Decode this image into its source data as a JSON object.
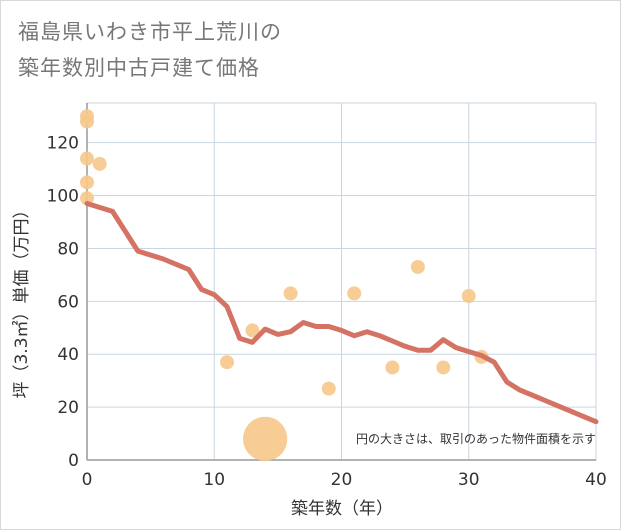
{
  "title": {
    "line1": "福島県いわき市平上荒川の",
    "line2": "築年数別中古戸建て価格"
  },
  "chart_data": {
    "type": "scatter+line",
    "xlabel": "築年数（年）",
    "ylabel": "坪（3.3㎡）単価（万円）",
    "xlim": [
      0,
      40
    ],
    "ylim": [
      0,
      135
    ],
    "xticks": [
      0,
      10,
      20,
      30,
      40
    ],
    "yticks": [
      0,
      20,
      40,
      60,
      80,
      100,
      120
    ],
    "grid": true,
    "note": "円の大きさは、取引のあった物件面積を示す",
    "colors": {
      "bubble": "#f6c88a",
      "line": "#d47263",
      "grid": "#c9d6e2",
      "axis": "#999999"
    },
    "bubbles": [
      {
        "x": 0,
        "y": 130,
        "size": 1
      },
      {
        "x": 0,
        "y": 128,
        "size": 1
      },
      {
        "x": 0,
        "y": 114,
        "size": 1
      },
      {
        "x": 0,
        "y": 105,
        "size": 1
      },
      {
        "x": 0,
        "y": 99,
        "size": 1
      },
      {
        "x": 1,
        "y": 112,
        "size": 1
      },
      {
        "x": 11,
        "y": 37,
        "size": 1
      },
      {
        "x": 13,
        "y": 49,
        "size": 1
      },
      {
        "x": 14,
        "y": 8,
        "size": 10
      },
      {
        "x": 16,
        "y": 63,
        "size": 1
      },
      {
        "x": 19,
        "y": 27,
        "size": 1
      },
      {
        "x": 21,
        "y": 63,
        "size": 1
      },
      {
        "x": 24,
        "y": 35,
        "size": 1
      },
      {
        "x": 26,
        "y": 73,
        "size": 1
      },
      {
        "x": 28,
        "y": 35,
        "size": 1
      },
      {
        "x": 30,
        "y": 62,
        "size": 1
      },
      {
        "x": 31,
        "y": 39,
        "size": 1
      }
    ],
    "trend": {
      "x": [
        0,
        2,
        4,
        6,
        8,
        9,
        10,
        11,
        12,
        13,
        14,
        15,
        16,
        17,
        18,
        19,
        20,
        21,
        22,
        23,
        24,
        25,
        26,
        27,
        28,
        29,
        30,
        31,
        32,
        33,
        34,
        35,
        36,
        37,
        38,
        39,
        40
      ],
      "y": [
        97,
        94,
        79,
        76,
        72,
        64.5,
        62.5,
        58,
        46,
        44.5,
        49.5,
        47.5,
        48.5,
        52,
        50.5,
        50.5,
        49,
        47,
        48.5,
        47,
        45,
        43,
        41.5,
        41.5,
        45.5,
        42.5,
        41,
        39.5,
        37,
        29.5,
        26.5,
        24.5,
        22.5,
        20.5,
        18.5,
        16.5,
        14.5
      ]
    }
  }
}
